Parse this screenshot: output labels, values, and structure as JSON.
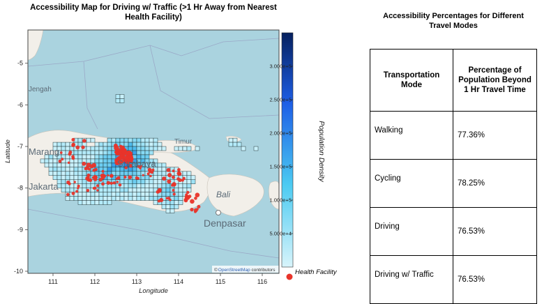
{
  "map": {
    "title": "Accessibility Map for Driving w/ Traffic (>1 Hr Away from Nearest Health Facility)",
    "xlabel": "Longitude",
    "ylabel": "Latitude",
    "x_ticks": [
      "111",
      "112",
      "113",
      "114",
      "115",
      "116"
    ],
    "y_ticks": [
      "-5",
      "-6",
      "-7",
      "-8",
      "-9",
      "-10"
    ],
    "x_range": [
      110.4,
      116.4
    ],
    "y_range": [
      -10.05,
      -4.2
    ],
    "colorbar": {
      "title": "Population Density",
      "ticks": [
        "3.000e+5",
        "2.500e+5",
        "2.000e+5",
        "1.500e+5",
        "1.000e+5",
        "5.000e+4"
      ],
      "color_low": "#d8f4fb",
      "color_high": "#06205e"
    },
    "places": [
      "Jengah",
      "Timur",
      "Surabaya",
      "Marang",
      "Jakarta",
      "Bali",
      "Denpasar"
    ],
    "attribution_symbol": "©",
    "attribution_link": "OpenStreetMap",
    "attribution_suffix": " contributors",
    "legend_label": "Health Facility",
    "facility_color": "#e8342a"
  },
  "table": {
    "title": "Accessibility Percentages for Different Travel Modes",
    "header_mode": "Transportation Mode",
    "header_pct": "Percentage of Population Beyond 1 Hr Travel Time",
    "rows": [
      {
        "mode": "Walking",
        "pct": "77.36%"
      },
      {
        "mode": "Cycling",
        "pct": "78.25%"
      },
      {
        "mode": "Driving",
        "pct": "76.53%"
      },
      {
        "mode": "Driving w/ Traffic",
        "pct": "76.53%"
      }
    ]
  }
}
